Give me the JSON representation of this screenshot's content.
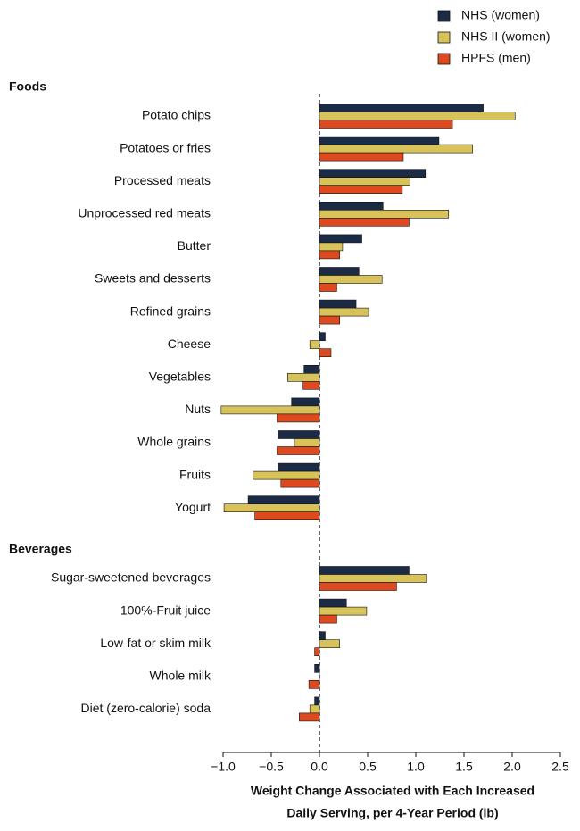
{
  "chart_data": {
    "type": "bar",
    "orientation": "horizontal",
    "series": [
      {
        "name": "NHS (women)",
        "color": "#1c2b45"
      },
      {
        "name": "NHS II (women)",
        "color": "#d8c35a"
      },
      {
        "name": "HPFS (men)",
        "color": "#dd4a1f"
      }
    ],
    "groups": [
      {
        "label": "Foods",
        "categories": [
          "Potato chips",
          "Potatoes or fries",
          "Processed meats",
          "Unprocessed red meats",
          "Butter",
          "Sweets and desserts",
          "Refined grains",
          "Cheese",
          "Vegetables",
          "Nuts",
          "Whole grains",
          "Fruits",
          "Yogurt"
        ],
        "values": [
          [
            1.7,
            2.03,
            1.38
          ],
          [
            1.24,
            1.59,
            0.87
          ],
          [
            1.1,
            0.94,
            0.86
          ],
          [
            0.66,
            1.34,
            0.93
          ],
          [
            0.44,
            0.24,
            0.21
          ],
          [
            0.41,
            0.65,
            0.18
          ],
          [
            0.38,
            0.51,
            0.21
          ],
          [
            0.06,
            -0.1,
            0.12
          ],
          [
            -0.16,
            -0.33,
            -0.17
          ],
          [
            -0.29,
            -1.02,
            -0.44
          ],
          [
            -0.43,
            -0.26,
            -0.44
          ],
          [
            -0.43,
            -0.69,
            -0.4
          ],
          [
            -0.74,
            -0.99,
            -0.67
          ]
        ]
      },
      {
        "label": "Beverages",
        "categories": [
          "Sugar-sweetened beverages",
          "100%-Fruit juice",
          "Low-fat or skim milk",
          "Whole milk",
          "Diet (zero-calorie) soda"
        ],
        "values": [
          [
            0.93,
            1.11,
            0.8
          ],
          [
            0.28,
            0.49,
            0.18
          ],
          [
            0.06,
            0.21,
            -0.05
          ],
          [
            -0.05,
            0.0,
            -0.11
          ],
          [
            -0.05,
            -0.1,
            -0.21
          ]
        ]
      }
    ],
    "xlabel": [
      "Weight Change Associated with Each Increased",
      "Daily Serving, per 4-Year Period (lb)"
    ],
    "xlim": [
      -1.0,
      2.5
    ],
    "xticks": [
      {
        "value": -1.0,
        "label": "−1.0"
      },
      {
        "value": -0.5,
        "label": "−0.5"
      },
      {
        "value": 0,
        "label": "0.0"
      },
      {
        "value": 0.5,
        "label": "0.5"
      },
      {
        "value": 1.0,
        "label": "1.0"
      },
      {
        "value": 1.5,
        "label": "1.5"
      },
      {
        "value": 2.0,
        "label": "2.0"
      },
      {
        "value": 2.5,
        "label": "2.5"
      }
    ],
    "zero_line": "dashed",
    "legend": "top-right"
  }
}
